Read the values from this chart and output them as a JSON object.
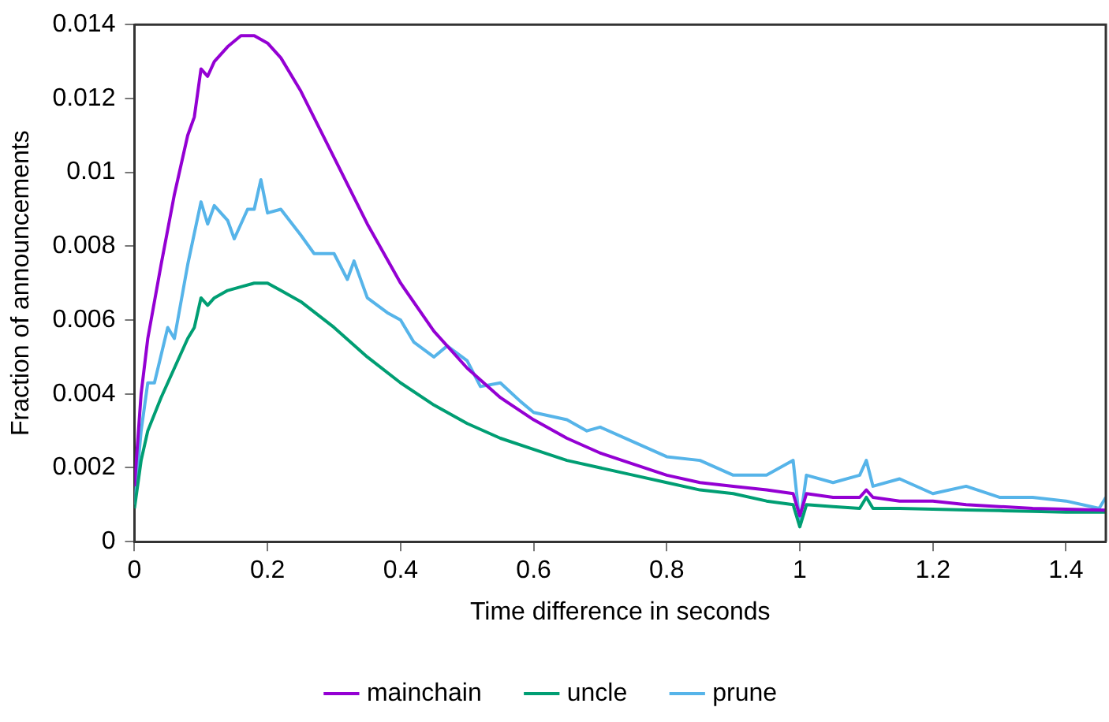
{
  "chart_data": {
    "type": "line",
    "xlabel": "Time difference in seconds",
    "ylabel": "Fraction of announcements",
    "xlim": [
      0,
      1.46
    ],
    "xticks": [
      0,
      0.2,
      0.4,
      0.6,
      0.8,
      1,
      1.2,
      1.4
    ],
    "ylim": [
      0,
      0.014
    ],
    "yticks": [
      0,
      0.002,
      0.004,
      0.006,
      0.008,
      0.01,
      0.012,
      0.014
    ],
    "grid": false,
    "legend": "bottom",
    "marker": "none",
    "line_style": "solid",
    "series": [
      {
        "name": "mainchain",
        "color": "#9400d3",
        "x": [
          0,
          0.01,
          0.02,
          0.04,
          0.06,
          0.08,
          0.09,
          0.1,
          0.11,
          0.12,
          0.14,
          0.16,
          0.18,
          0.2,
          0.22,
          0.25,
          0.3,
          0.35,
          0.4,
          0.45,
          0.5,
          0.55,
          0.6,
          0.65,
          0.7,
          0.75,
          0.8,
          0.85,
          0.9,
          0.95,
          0.99,
          1.0,
          1.01,
          1.05,
          1.09,
          1.1,
          1.11,
          1.15,
          1.2,
          1.25,
          1.3,
          1.35,
          1.4,
          1.46
        ],
        "values": [
          0.0015,
          0.004,
          0.0055,
          0.0075,
          0.0094,
          0.011,
          0.0115,
          0.0128,
          0.0126,
          0.013,
          0.0134,
          0.0137,
          0.0137,
          0.0135,
          0.0131,
          0.0122,
          0.0104,
          0.0086,
          0.007,
          0.0057,
          0.0047,
          0.0039,
          0.0033,
          0.0028,
          0.0024,
          0.0021,
          0.0018,
          0.0016,
          0.0015,
          0.0014,
          0.0013,
          0.0007,
          0.0013,
          0.0012,
          0.0012,
          0.0014,
          0.0012,
          0.0011,
          0.0011,
          0.001,
          0.00095,
          0.0009,
          0.00088,
          0.00085
        ]
      },
      {
        "name": "uncle",
        "color": "#009e73",
        "x": [
          0,
          0.01,
          0.02,
          0.04,
          0.06,
          0.08,
          0.09,
          0.1,
          0.11,
          0.12,
          0.14,
          0.16,
          0.18,
          0.2,
          0.22,
          0.25,
          0.3,
          0.35,
          0.4,
          0.45,
          0.5,
          0.55,
          0.6,
          0.65,
          0.7,
          0.75,
          0.8,
          0.85,
          0.9,
          0.95,
          0.99,
          1.0,
          1.01,
          1.05,
          1.09,
          1.1,
          1.11,
          1.15,
          1.2,
          1.25,
          1.3,
          1.35,
          1.4,
          1.46
        ],
        "values": [
          0.0009,
          0.0022,
          0.003,
          0.0039,
          0.0047,
          0.0055,
          0.0058,
          0.0066,
          0.0064,
          0.0066,
          0.0068,
          0.0069,
          0.007,
          0.007,
          0.0068,
          0.0065,
          0.0058,
          0.005,
          0.0043,
          0.0037,
          0.0032,
          0.0028,
          0.0025,
          0.0022,
          0.002,
          0.0018,
          0.0016,
          0.0014,
          0.0013,
          0.0011,
          0.001,
          0.0004,
          0.001,
          0.00095,
          0.0009,
          0.0012,
          0.0009,
          0.0009,
          0.00088,
          0.00086,
          0.00084,
          0.00082,
          0.0008,
          0.0008
        ]
      },
      {
        "name": "prune",
        "color": "#56b4e9",
        "x": [
          0,
          0.01,
          0.02,
          0.03,
          0.05,
          0.06,
          0.08,
          0.1,
          0.11,
          0.12,
          0.14,
          0.15,
          0.17,
          0.18,
          0.19,
          0.2,
          0.22,
          0.25,
          0.27,
          0.3,
          0.32,
          0.33,
          0.35,
          0.38,
          0.4,
          0.42,
          0.45,
          0.47,
          0.5,
          0.52,
          0.55,
          0.58,
          0.6,
          0.65,
          0.68,
          0.7,
          0.75,
          0.8,
          0.85,
          0.9,
          0.95,
          0.99,
          1.0,
          1.01,
          1.05,
          1.09,
          1.1,
          1.11,
          1.15,
          1.2,
          1.25,
          1.3,
          1.35,
          1.4,
          1.45,
          1.46
        ],
        "values": [
          0.001,
          0.003,
          0.0043,
          0.0043,
          0.0058,
          0.0055,
          0.0075,
          0.0092,
          0.0086,
          0.0091,
          0.0087,
          0.0082,
          0.009,
          0.009,
          0.0098,
          0.0089,
          0.009,
          0.0083,
          0.0078,
          0.0078,
          0.0071,
          0.0076,
          0.0066,
          0.0062,
          0.006,
          0.0054,
          0.005,
          0.0053,
          0.0049,
          0.0042,
          0.0043,
          0.0038,
          0.0035,
          0.0033,
          0.003,
          0.0031,
          0.0027,
          0.0023,
          0.0022,
          0.0018,
          0.0018,
          0.0022,
          0.0005,
          0.0018,
          0.0016,
          0.0018,
          0.0022,
          0.0015,
          0.0017,
          0.0013,
          0.0015,
          0.0012,
          0.0012,
          0.0011,
          0.0009,
          0.0012
        ]
      }
    ]
  }
}
